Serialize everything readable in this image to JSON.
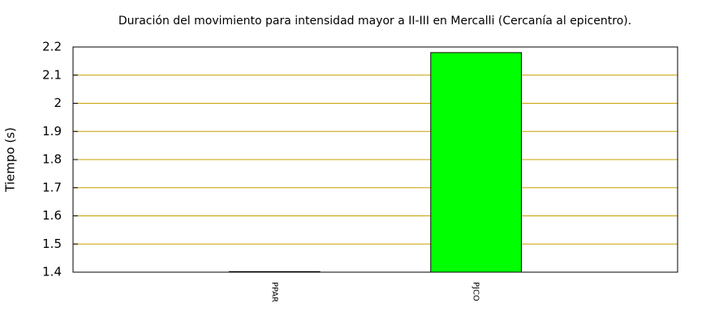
{
  "chart_data": {
    "type": "bar",
    "title": "Duración del movimiento para intensidad mayor a II-III en Mercalli (Cercanía al epicentro).",
    "y_label": "Tiempo (s)",
    "categories": [
      "PPAR",
      "PJCO"
    ],
    "values": [
      1.402,
      2.18
    ],
    "color": "#00ff00",
    "grid_color": "#c8a000",
    "ylim": [
      1.4,
      2.2
    ],
    "yticks": [
      1.4,
      1.5,
      1.6,
      1.7,
      1.8,
      1.9,
      2,
      2.1,
      2.2
    ],
    "grid": true
  }
}
